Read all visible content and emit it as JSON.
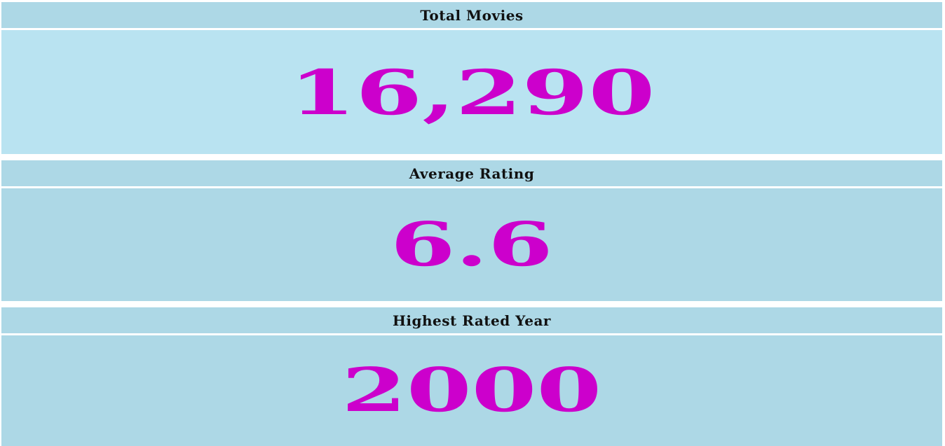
{
  "colors": {
    "panel_header": "#add8e6",
    "panel_body_highlight": "#b9e3f1",
    "panel_body": "#add8e6",
    "value_text": "#cc00cc",
    "header_text": "#111111"
  },
  "cards": [
    {
      "title": "Total Movies",
      "value": "16,290"
    },
    {
      "title": "Average Rating",
      "value": "6.6"
    },
    {
      "title": "Highest Rated Year",
      "value": "2000"
    }
  ]
}
